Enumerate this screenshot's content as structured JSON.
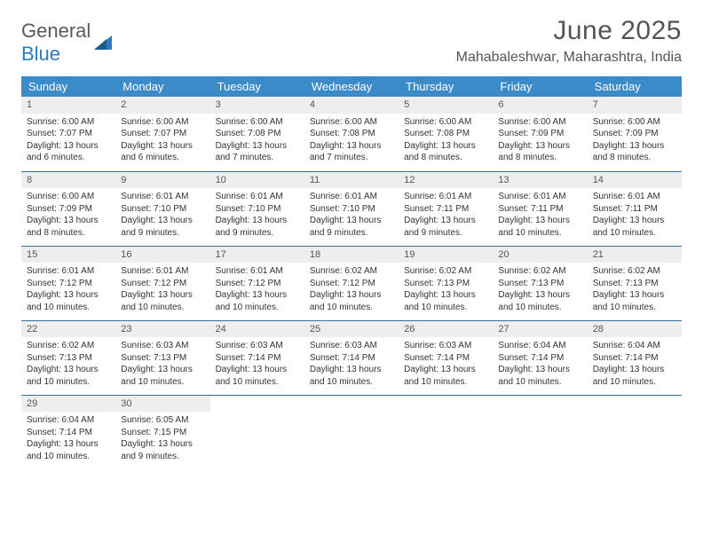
{
  "branding": {
    "logo_text_1": "General",
    "logo_text_2": "Blue",
    "logo_color_gray": "#5a5a5a",
    "logo_color_blue": "#2f7bbf"
  },
  "header": {
    "title": "June 2025",
    "location": "Mahabaleshwar, Maharashtra, India"
  },
  "colors": {
    "header_bg": "#3b8bc8",
    "header_text": "#ffffff",
    "daynum_bg": "#eeeeee",
    "row_border": "#3b6e9a",
    "body_text": "#333333"
  },
  "weekdays": [
    "Sunday",
    "Monday",
    "Tuesday",
    "Wednesday",
    "Thursday",
    "Friday",
    "Saturday"
  ],
  "days": [
    {
      "n": "1",
      "sunrise": "Sunrise: 6:00 AM",
      "sunset": "Sunset: 7:07 PM",
      "day1": "Daylight: 13 hours",
      "day2": "and 6 minutes."
    },
    {
      "n": "2",
      "sunrise": "Sunrise: 6:00 AM",
      "sunset": "Sunset: 7:07 PM",
      "day1": "Daylight: 13 hours",
      "day2": "and 6 minutes."
    },
    {
      "n": "3",
      "sunrise": "Sunrise: 6:00 AM",
      "sunset": "Sunset: 7:08 PM",
      "day1": "Daylight: 13 hours",
      "day2": "and 7 minutes."
    },
    {
      "n": "4",
      "sunrise": "Sunrise: 6:00 AM",
      "sunset": "Sunset: 7:08 PM",
      "day1": "Daylight: 13 hours",
      "day2": "and 7 minutes."
    },
    {
      "n": "5",
      "sunrise": "Sunrise: 6:00 AM",
      "sunset": "Sunset: 7:08 PM",
      "day1": "Daylight: 13 hours",
      "day2": "and 8 minutes."
    },
    {
      "n": "6",
      "sunrise": "Sunrise: 6:00 AM",
      "sunset": "Sunset: 7:09 PM",
      "day1": "Daylight: 13 hours",
      "day2": "and 8 minutes."
    },
    {
      "n": "7",
      "sunrise": "Sunrise: 6:00 AM",
      "sunset": "Sunset: 7:09 PM",
      "day1": "Daylight: 13 hours",
      "day2": "and 8 minutes."
    },
    {
      "n": "8",
      "sunrise": "Sunrise: 6:00 AM",
      "sunset": "Sunset: 7:09 PM",
      "day1": "Daylight: 13 hours",
      "day2": "and 8 minutes."
    },
    {
      "n": "9",
      "sunrise": "Sunrise: 6:01 AM",
      "sunset": "Sunset: 7:10 PM",
      "day1": "Daylight: 13 hours",
      "day2": "and 9 minutes."
    },
    {
      "n": "10",
      "sunrise": "Sunrise: 6:01 AM",
      "sunset": "Sunset: 7:10 PM",
      "day1": "Daylight: 13 hours",
      "day2": "and 9 minutes."
    },
    {
      "n": "11",
      "sunrise": "Sunrise: 6:01 AM",
      "sunset": "Sunset: 7:10 PM",
      "day1": "Daylight: 13 hours",
      "day2": "and 9 minutes."
    },
    {
      "n": "12",
      "sunrise": "Sunrise: 6:01 AM",
      "sunset": "Sunset: 7:11 PM",
      "day1": "Daylight: 13 hours",
      "day2": "and 9 minutes."
    },
    {
      "n": "13",
      "sunrise": "Sunrise: 6:01 AM",
      "sunset": "Sunset: 7:11 PM",
      "day1": "Daylight: 13 hours",
      "day2": "and 10 minutes."
    },
    {
      "n": "14",
      "sunrise": "Sunrise: 6:01 AM",
      "sunset": "Sunset: 7:11 PM",
      "day1": "Daylight: 13 hours",
      "day2": "and 10 minutes."
    },
    {
      "n": "15",
      "sunrise": "Sunrise: 6:01 AM",
      "sunset": "Sunset: 7:12 PM",
      "day1": "Daylight: 13 hours",
      "day2": "and 10 minutes."
    },
    {
      "n": "16",
      "sunrise": "Sunrise: 6:01 AM",
      "sunset": "Sunset: 7:12 PM",
      "day1": "Daylight: 13 hours",
      "day2": "and 10 minutes."
    },
    {
      "n": "17",
      "sunrise": "Sunrise: 6:01 AM",
      "sunset": "Sunset: 7:12 PM",
      "day1": "Daylight: 13 hours",
      "day2": "and 10 minutes."
    },
    {
      "n": "18",
      "sunrise": "Sunrise: 6:02 AM",
      "sunset": "Sunset: 7:12 PM",
      "day1": "Daylight: 13 hours",
      "day2": "and 10 minutes."
    },
    {
      "n": "19",
      "sunrise": "Sunrise: 6:02 AM",
      "sunset": "Sunset: 7:13 PM",
      "day1": "Daylight: 13 hours",
      "day2": "and 10 minutes."
    },
    {
      "n": "20",
      "sunrise": "Sunrise: 6:02 AM",
      "sunset": "Sunset: 7:13 PM",
      "day1": "Daylight: 13 hours",
      "day2": "and 10 minutes."
    },
    {
      "n": "21",
      "sunrise": "Sunrise: 6:02 AM",
      "sunset": "Sunset: 7:13 PM",
      "day1": "Daylight: 13 hours",
      "day2": "and 10 minutes."
    },
    {
      "n": "22",
      "sunrise": "Sunrise: 6:02 AM",
      "sunset": "Sunset: 7:13 PM",
      "day1": "Daylight: 13 hours",
      "day2": "and 10 minutes."
    },
    {
      "n": "23",
      "sunrise": "Sunrise: 6:03 AM",
      "sunset": "Sunset: 7:13 PM",
      "day1": "Daylight: 13 hours",
      "day2": "and 10 minutes."
    },
    {
      "n": "24",
      "sunrise": "Sunrise: 6:03 AM",
      "sunset": "Sunset: 7:14 PM",
      "day1": "Daylight: 13 hours",
      "day2": "and 10 minutes."
    },
    {
      "n": "25",
      "sunrise": "Sunrise: 6:03 AM",
      "sunset": "Sunset: 7:14 PM",
      "day1": "Daylight: 13 hours",
      "day2": "and 10 minutes."
    },
    {
      "n": "26",
      "sunrise": "Sunrise: 6:03 AM",
      "sunset": "Sunset: 7:14 PM",
      "day1": "Daylight: 13 hours",
      "day2": "and 10 minutes."
    },
    {
      "n": "27",
      "sunrise": "Sunrise: 6:04 AM",
      "sunset": "Sunset: 7:14 PM",
      "day1": "Daylight: 13 hours",
      "day2": "and 10 minutes."
    },
    {
      "n": "28",
      "sunrise": "Sunrise: 6:04 AM",
      "sunset": "Sunset: 7:14 PM",
      "day1": "Daylight: 13 hours",
      "day2": "and 10 minutes."
    },
    {
      "n": "29",
      "sunrise": "Sunrise: 6:04 AM",
      "sunset": "Sunset: 7:14 PM",
      "day1": "Daylight: 13 hours",
      "day2": "and 10 minutes."
    },
    {
      "n": "30",
      "sunrise": "Sunrise: 6:05 AM",
      "sunset": "Sunset: 7:15 PM",
      "day1": "Daylight: 13 hours",
      "day2": "and 9 minutes."
    }
  ]
}
